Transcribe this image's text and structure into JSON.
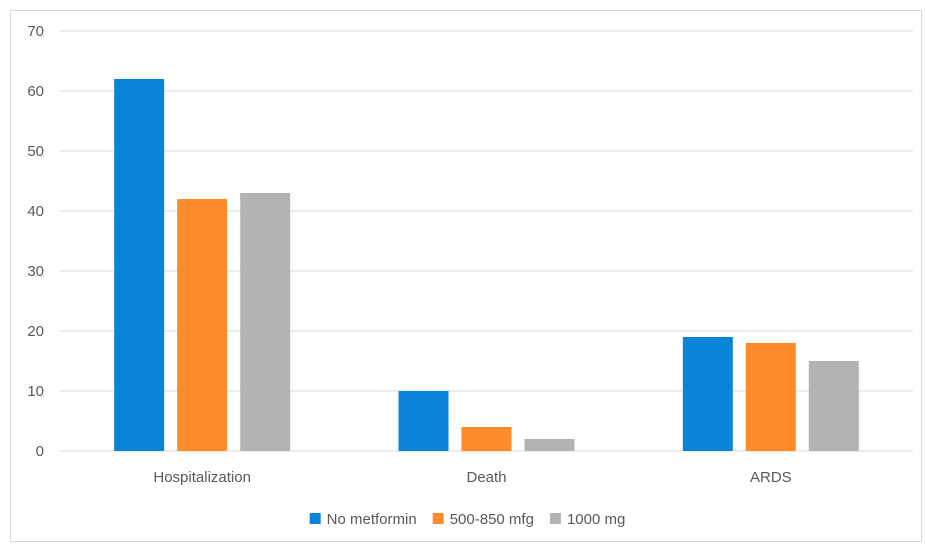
{
  "chart_data": {
    "type": "bar",
    "categories": [
      "Hospitalization",
      "Death",
      "ARDS"
    ],
    "series": [
      {
        "name": "No metformin",
        "values": [
          62,
          10,
          19
        ],
        "color": "#0A84D6"
      },
      {
        "name": "500-850 mfg",
        "values": [
          42,
          4,
          18
        ],
        "color": "#FF8C2A"
      },
      {
        "name": "1000 mg",
        "values": [
          43,
          2,
          15
        ],
        "color": "#B3B3B3"
      }
    ],
    "ylim": [
      0,
      70
    ],
    "yticks": [
      "0",
      "10",
      "20",
      "30",
      "40",
      "50",
      "60",
      "70"
    ],
    "grid": true,
    "legend": "bottom"
  }
}
